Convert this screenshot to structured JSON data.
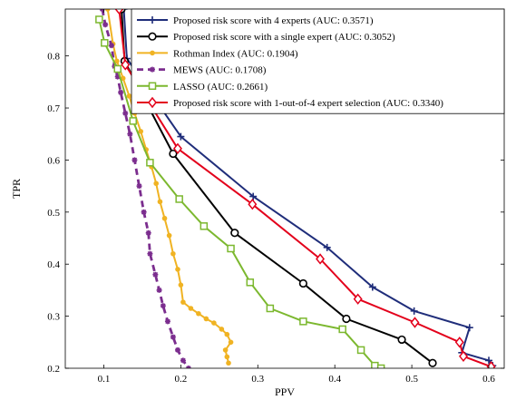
{
  "chart_data": {
    "type": "line",
    "xlabel": "PPV",
    "ylabel": "TPR",
    "xlim": [
      0.05,
      0.62
    ],
    "ylim": [
      0.2,
      0.89
    ],
    "xticks": [
      0.1,
      0.2,
      0.3,
      0.4,
      0.5,
      0.6
    ],
    "yticks": [
      0.2,
      0.3,
      0.4,
      0.5,
      0.6,
      0.7,
      0.8
    ],
    "legend_position": "top-right",
    "series": [
      {
        "name": "Proposed risk score with 4 experts (AUC: 0.3571)",
        "color": "#1f2d7a",
        "dash": "solid",
        "marker": "plus",
        "points": [
          [
            0.126,
            0.89
          ],
          [
            0.13,
            0.795
          ],
          [
            0.2,
            0.645
          ],
          [
            0.294,
            0.53
          ],
          [
            0.39,
            0.432
          ],
          [
            0.449,
            0.356
          ],
          [
            0.503,
            0.31
          ],
          [
            0.575,
            0.278
          ],
          [
            0.565,
            0.23
          ],
          [
            0.6,
            0.215
          ],
          [
            0.605,
            0.205
          ]
        ]
      },
      {
        "name": "Proposed risk score with a single expert (AUC: 0.3052)",
        "color": "#000000",
        "dash": "solid",
        "marker": "circle",
        "points": [
          [
            0.123,
            0.89
          ],
          [
            0.127,
            0.79
          ],
          [
            0.19,
            0.612
          ],
          [
            0.27,
            0.46
          ],
          [
            0.359,
            0.363
          ],
          [
            0.415,
            0.295
          ],
          [
            0.487,
            0.255
          ],
          [
            0.527,
            0.21
          ]
        ]
      },
      {
        "name": "Rothman Index (AUC: 0.1904)",
        "color": "#f0b323",
        "dash": "solid",
        "marker": "dot",
        "points": [
          [
            0.105,
            0.89
          ],
          [
            0.112,
            0.823
          ],
          [
            0.117,
            0.79
          ],
          [
            0.125,
            0.757
          ],
          [
            0.133,
            0.723
          ],
          [
            0.14,
            0.69
          ],
          [
            0.148,
            0.655
          ],
          [
            0.155,
            0.62
          ],
          [
            0.162,
            0.587
          ],
          [
            0.168,
            0.555
          ],
          [
            0.173,
            0.52
          ],
          [
            0.179,
            0.488
          ],
          [
            0.185,
            0.455
          ],
          [
            0.19,
            0.42
          ],
          [
            0.196,
            0.39
          ],
          [
            0.2,
            0.36
          ],
          [
            0.203,
            0.327
          ],
          [
            0.213,
            0.315
          ],
          [
            0.223,
            0.305
          ],
          [
            0.233,
            0.295
          ],
          [
            0.243,
            0.287
          ],
          [
            0.253,
            0.275
          ],
          [
            0.26,
            0.265
          ],
          [
            0.265,
            0.25
          ],
          [
            0.258,
            0.235
          ],
          [
            0.26,
            0.222
          ],
          [
            0.262,
            0.21
          ]
        ]
      },
      {
        "name": "MEWS (AUC: 0.1708)",
        "color": "#7b2d8e",
        "dash": "dashed",
        "marker": "star",
        "points": [
          [
            0.098,
            0.89
          ],
          [
            0.102,
            0.86
          ],
          [
            0.11,
            0.82
          ],
          [
            0.114,
            0.78
          ],
          [
            0.118,
            0.76
          ],
          [
            0.122,
            0.73
          ],
          [
            0.128,
            0.69
          ],
          [
            0.134,
            0.65
          ],
          [
            0.14,
            0.6
          ],
          [
            0.146,
            0.55
          ],
          [
            0.152,
            0.5
          ],
          [
            0.158,
            0.46
          ],
          [
            0.16,
            0.42
          ],
          [
            0.167,
            0.38
          ],
          [
            0.172,
            0.35
          ],
          [
            0.177,
            0.32
          ],
          [
            0.183,
            0.29
          ],
          [
            0.19,
            0.26
          ],
          [
            0.196,
            0.235
          ],
          [
            0.203,
            0.215
          ],
          [
            0.21,
            0.2
          ]
        ]
      },
      {
        "name": "LASSO (AUC: 0.2661)",
        "color": "#7cb82f",
        "dash": "solid",
        "marker": "square",
        "points": [
          [
            0.094,
            0.87
          ],
          [
            0.101,
            0.825
          ],
          [
            0.118,
            0.775
          ],
          [
            0.138,
            0.675
          ],
          [
            0.16,
            0.595
          ],
          [
            0.198,
            0.525
          ],
          [
            0.23,
            0.473
          ],
          [
            0.265,
            0.43
          ],
          [
            0.29,
            0.365
          ],
          [
            0.316,
            0.315
          ],
          [
            0.359,
            0.29
          ],
          [
            0.41,
            0.275
          ],
          [
            0.434,
            0.235
          ],
          [
            0.452,
            0.205
          ],
          [
            0.46,
            0.2
          ]
        ]
      },
      {
        "name": "Proposed risk score with 1-out-of-4 expert selection (AUC: 0.3340)",
        "color": "#e3001b",
        "dash": "solid",
        "marker": "diamond",
        "points": [
          [
            0.12,
            0.89
          ],
          [
            0.128,
            0.783
          ],
          [
            0.196,
            0.622
          ],
          [
            0.293,
            0.515
          ],
          [
            0.381,
            0.41
          ],
          [
            0.43,
            0.333
          ],
          [
            0.504,
            0.288
          ],
          [
            0.562,
            0.25
          ],
          [
            0.567,
            0.223
          ],
          [
            0.603,
            0.203
          ]
        ]
      }
    ]
  }
}
